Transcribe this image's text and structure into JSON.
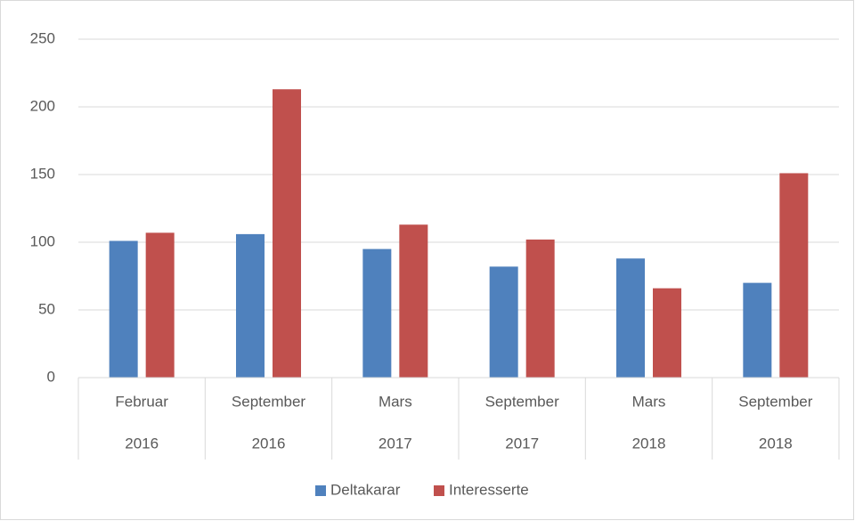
{
  "chart_data": {
    "type": "bar",
    "categories": [
      [
        "Februar",
        "2016"
      ],
      [
        "September",
        "2016"
      ],
      [
        "Mars",
        "2017"
      ],
      [
        "September",
        "2017"
      ],
      [
        "Mars",
        "2018"
      ],
      [
        "September",
        "2018"
      ]
    ],
    "series": [
      {
        "name": "Deltakarar",
        "color": "#4f81bd",
        "values": [
          101,
          106,
          95,
          82,
          88,
          70
        ]
      },
      {
        "name": "Interesserte",
        "color": "#c0504d",
        "values": [
          107,
          213,
          113,
          102,
          66,
          151
        ]
      }
    ],
    "ylim": [
      0,
      250
    ],
    "yticks": [
      0,
      50,
      100,
      150,
      200,
      250
    ],
    "grid": true,
    "legend": "bottom"
  }
}
